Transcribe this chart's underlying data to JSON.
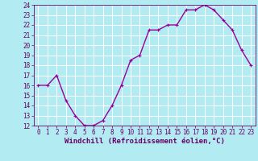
{
  "x": [
    0,
    1,
    2,
    3,
    4,
    5,
    6,
    7,
    8,
    9,
    10,
    11,
    12,
    13,
    14,
    15,
    16,
    17,
    18,
    19,
    20,
    21,
    22,
    23
  ],
  "y": [
    16,
    16,
    17,
    14.5,
    13,
    12,
    12,
    12.5,
    14,
    16,
    18.5,
    19,
    21.5,
    21.5,
    22,
    22,
    23.5,
    23.5,
    24,
    23.5,
    22.5,
    21.5,
    19.5,
    18
  ],
  "line_color": "#990099",
  "marker": "+",
  "bg_color": "#b2ebf2",
  "grid_color": "#ffffff",
  "xlabel": "Windchill (Refroidissement éolien,°C)",
  "xlabel_color": "#660066",
  "tick_color": "#660066",
  "ylim": [
    12,
    24
  ],
  "xlim": [
    -0.5,
    23.5
  ],
  "yticks": [
    12,
    13,
    14,
    15,
    16,
    17,
    18,
    19,
    20,
    21,
    22,
    23,
    24
  ],
  "xticks": [
    0,
    1,
    2,
    3,
    4,
    5,
    6,
    7,
    8,
    9,
    10,
    11,
    12,
    13,
    14,
    15,
    16,
    17,
    18,
    19,
    20,
    21,
    22,
    23
  ],
  "font_size_label": 6.5,
  "font_size_tick": 5.5,
  "line_width": 1.0,
  "marker_size": 3.5,
  "marker_ew": 0.8
}
